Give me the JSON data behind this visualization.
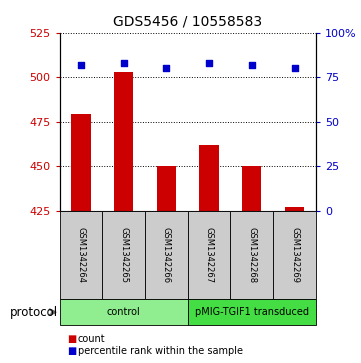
{
  "title": "GDS5456 / 10558583",
  "samples": [
    "GSM1342264",
    "GSM1342265",
    "GSM1342266",
    "GSM1342267",
    "GSM1342268",
    "GSM1342269"
  ],
  "counts": [
    479,
    503,
    450,
    462,
    450,
    427
  ],
  "percentile_ranks": [
    82,
    83,
    80,
    83,
    82,
    80
  ],
  "ylim_left": [
    425,
    525
  ],
  "yticks_left": [
    425,
    450,
    475,
    500,
    525
  ],
  "ylim_right": [
    0,
    100
  ],
  "yticks_right": [
    0,
    25,
    50,
    75,
    100
  ],
  "bar_color": "#cc0000",
  "dot_color": "#0000cc",
  "bar_bottom": 425,
  "protocol_groups": [
    {
      "label": "control",
      "start": 0,
      "end": 3,
      "color": "#90ee90"
    },
    {
      "label": "pMIG-TGIF1 transduced",
      "start": 3,
      "end": 6,
      "color": "#44dd44"
    }
  ],
  "legend_items": [
    {
      "label": "count",
      "color": "#cc0000"
    },
    {
      "label": "percentile rank within the sample",
      "color": "#0000cc"
    }
  ],
  "grid_linestyle": "dotted",
  "left_tick_color": "#cc0000",
  "right_tick_color": "#0000cc",
  "protocol_label": "protocol",
  "background_color": "#ffffff",
  "sample_box_color": "#cccccc"
}
